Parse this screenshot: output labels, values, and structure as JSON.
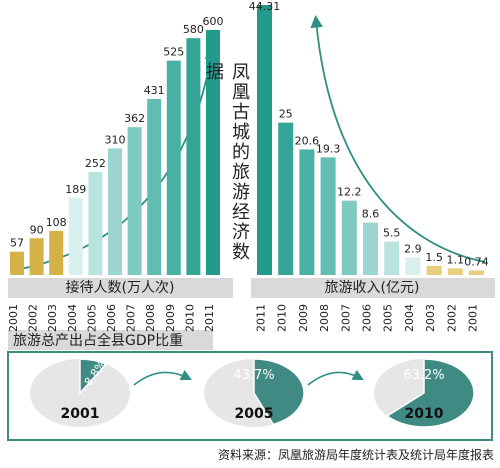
{
  "chart_data": [
    {
      "type": "bar",
      "title": "凤凰古城的旅游经济数据",
      "xlabel": "接待人数(万人次)",
      "categories": [
        "2001",
        "2002",
        "2003",
        "2004",
        "2005",
        "2006",
        "2007",
        "2008",
        "2009",
        "2010",
        "2011"
      ],
      "values": [
        57,
        90,
        108,
        189,
        252,
        310,
        362,
        431,
        525,
        580,
        600
      ],
      "ylim": [
        0,
        600
      ],
      "colors": [
        "#d4b248",
        "#d4b248",
        "#d4b248",
        "#d9f1ee",
        "#b9e4de",
        "#9ad6cf",
        "#7ec9c0",
        "#61bcb1",
        "#48b0a4",
        "#35a597",
        "#239a8c"
      ],
      "grid": false
    },
    {
      "type": "bar",
      "xlabel": "旅游收入(亿元)",
      "categories": [
        "2011",
        "2010",
        "2009",
        "2008",
        "2007",
        "2006",
        "2005",
        "2004",
        "2003",
        "2002",
        "2001"
      ],
      "values": [
        44.31,
        25,
        20.6,
        19.3,
        12.2,
        8.6,
        5.5,
        2.9,
        1.5,
        1.1,
        0.74
      ],
      "value_labels": [
        "44.31",
        "25",
        "20.6",
        "19.3",
        "12.2",
        "8.6",
        "5.5",
        "2.9",
        "1.5",
        "1.1",
        "0.74"
      ],
      "ylim": [
        0,
        44.31
      ],
      "colors": [
        "#239a8c",
        "#35a597",
        "#48b0a4",
        "#61bcb1",
        "#7ec9c0",
        "#9ad6cf",
        "#b9e4de",
        "#d9f1ee",
        "#e7cf7d",
        "#e7cf7d",
        "#e7cf7d"
      ],
      "grid": false
    },
    {
      "type": "pie",
      "title": "旅游总产出占全县GDP比重",
      "categories": [
        "2001",
        "2005",
        "2010"
      ],
      "values": [
        8.8,
        43.7,
        63.2
      ],
      "value_labels": [
        "8.8%",
        "43.7%",
        "63.2%"
      ],
      "colors": {
        "share": "#3f8b84",
        "rest": "#e6e6e6"
      }
    }
  ],
  "source_note": "资料来源：凤凰旅游局年度统计表及统计局年度报表"
}
